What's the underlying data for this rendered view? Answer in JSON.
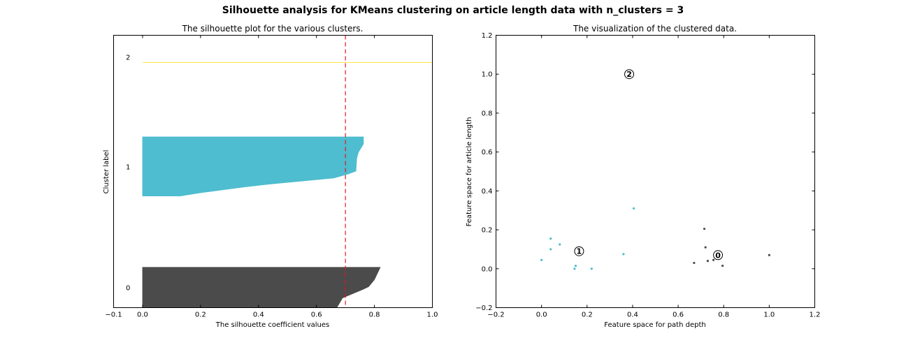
{
  "figure": {
    "title": "Silhouette analysis for KMeans clustering on article length data with n_clusters = 3"
  },
  "chart_data": [
    {
      "type": "area",
      "title": "The silhouette plot for the various clusters.",
      "xlabel": "The silhouette coefficient values",
      "ylabel": "Cluster label",
      "xlim": [
        -0.1,
        1.0
      ],
      "ylim": [
        0,
        1
      ],
      "x_ticks": [
        -0.1,
        0.0,
        0.2,
        0.4,
        0.6,
        0.8,
        1.0
      ],
      "x_tick_labels": [
        "−0.1",
        "0.0",
        "0.2",
        "0.4",
        "0.6",
        "0.8",
        "1.0"
      ],
      "y_tick_labels": [
        "0",
        "1",
        "2"
      ],
      "average_silhouette_score": 0.7,
      "series": [
        {
          "name": "0",
          "color": "#4b4b4b",
          "profile": [
            [
              0.82,
              0.148
            ],
            [
              0.8,
              0.103
            ],
            [
              0.78,
              0.077
            ],
            [
              0.76,
              0.067
            ],
            [
              0.69,
              0.036
            ],
            [
              0.67,
              0.0
            ]
          ],
          "band": [
            0.0,
            0.148
          ]
        },
        {
          "name": "1",
          "color": "#4ebdcf",
          "profile": [
            [
              0.762,
              0.627
            ],
            [
              0.762,
              0.601
            ],
            [
              0.745,
              0.571
            ],
            [
              0.739,
              0.549
            ],
            [
              0.736,
              0.501
            ],
            [
              0.73,
              0.499
            ],
            [
              0.71,
              0.491
            ],
            [
              0.66,
              0.476
            ],
            [
              0.6,
              0.47
            ],
            [
              0.45,
              0.455
            ],
            [
              0.35,
              0.443
            ],
            [
              0.2,
              0.422
            ],
            [
              0.13,
              0.41
            ],
            [
              0.0,
              0.41
            ]
          ],
          "band": [
            0.41,
            0.627
          ]
        },
        {
          "name": "2",
          "color": "#ffe84a",
          "profile": [
            [
              1.0,
              0.9
            ],
            [
              0.0,
              0.9
            ]
          ],
          "band": [
            0.9,
            0.9
          ]
        }
      ]
    },
    {
      "type": "scatter",
      "title": "The visualization of the clustered data.",
      "xlabel": "Feature space for path depth",
      "ylabel": "Feature space for article length",
      "xlim": [
        -0.2,
        1.2
      ],
      "ylim": [
        -0.2,
        1.2
      ],
      "x_ticks": [
        -0.2,
        0.0,
        0.2,
        0.4,
        0.6,
        0.8,
        1.0,
        1.2
      ],
      "x_tick_labels": [
        "−0.2",
        "0.0",
        "0.2",
        "0.4",
        "0.6",
        "0.8",
        "1.0",
        "1.2"
      ],
      "y_ticks": [
        -0.2,
        0.0,
        0.2,
        0.4,
        0.6,
        0.8,
        1.0,
        1.2
      ],
      "y_tick_labels": [
        "−0.2",
        "0.0",
        "0.2",
        "0.4",
        "0.6",
        "0.8",
        "1.0",
        "1.2"
      ],
      "series": [
        {
          "name": "0",
          "color": "#4b4b4b",
          "points": [
            [
              0.715,
              0.205
            ],
            [
              0.72,
              0.11
            ],
            [
              0.67,
              0.03
            ],
            [
              0.73,
              0.04
            ],
            [
              0.755,
              0.045
            ],
            [
              0.795,
              0.015
            ],
            [
              1.0,
              0.07
            ]
          ]
        },
        {
          "name": "1",
          "color": "#4ebdcf",
          "points": [
            [
              0.0,
              0.045
            ],
            [
              0.04,
              0.155
            ],
            [
              0.04,
              0.1
            ],
            [
              0.08,
              0.125
            ],
            [
              0.15,
              0.015
            ],
            [
              0.145,
              0.0
            ],
            [
              0.22,
              0.0
            ],
            [
              0.36,
              0.075
            ],
            [
              0.405,
              0.31
            ]
          ]
        },
        {
          "name": "2",
          "color": "#ffe84a",
          "points": []
        }
      ],
      "centers": [
        {
          "label": "0",
          "x": 0.775,
          "y": 0.07
        },
        {
          "label": "1",
          "x": 0.165,
          "y": 0.09
        },
        {
          "label": "2",
          "x": 0.385,
          "y": 1.0
        }
      ]
    }
  ]
}
